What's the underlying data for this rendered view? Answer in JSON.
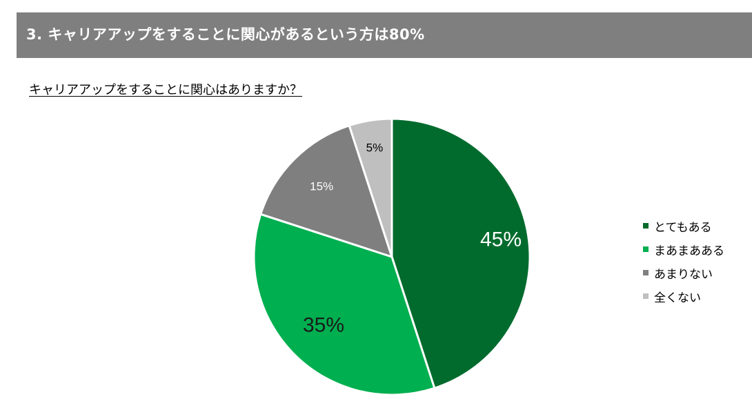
{
  "header": {
    "title": "3. キャリアアップをすることに関心があるという方は80%"
  },
  "chart_data": {
    "type": "pie",
    "title": "キャリアアップをすることに関心はありますか？",
    "slices": [
      {
        "label": "とてもある",
        "value": 45,
        "color": "#006b2d",
        "label_color": "#ffffff"
      },
      {
        "label": "まあまあある",
        "value": 35,
        "color": "#00af4f",
        "label_color": "#1a1a1a"
      },
      {
        "label": "あまりない",
        "value": 15,
        "color": "#7f7f7f",
        "label_color": "#ffffff"
      },
      {
        "label": "全くない",
        "value": 5,
        "color": "#bfbfbf",
        "label_color": "#000000"
      }
    ],
    "value_suffix": "%",
    "legend": "right"
  }
}
